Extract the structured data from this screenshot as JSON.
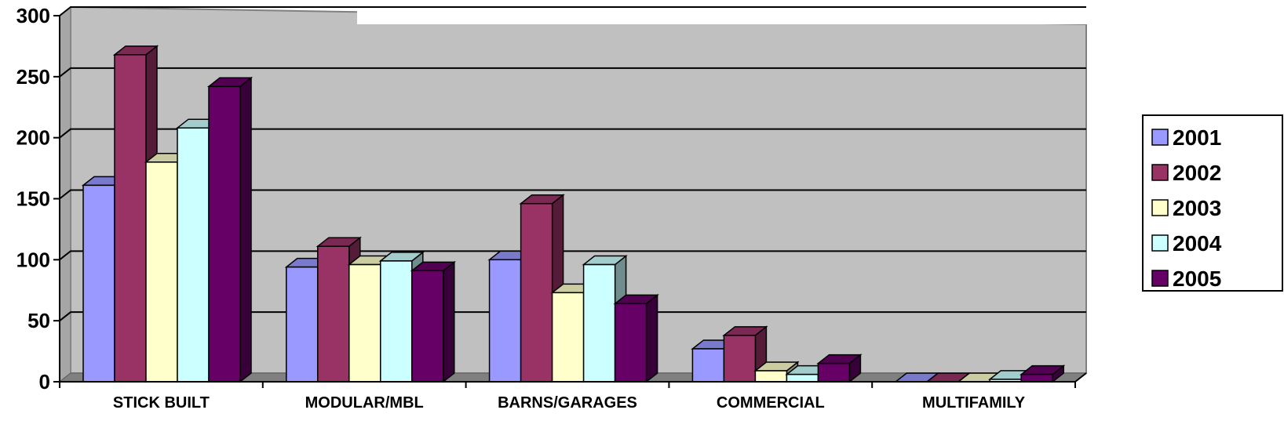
{
  "chart_data": {
    "type": "bar",
    "style": "3d-clustered-column",
    "categories": [
      "STICK BUILT",
      "MODULAR/MBL",
      "BARNS/GARAGES",
      "COMMERCIAL",
      "MULTIFAMILY"
    ],
    "series": [
      {
        "name": "2001",
        "color": "#9999FF",
        "values": [
          161,
          94,
          100,
          27,
          0
        ]
      },
      {
        "name": "2002",
        "color": "#993366",
        "values": [
          268,
          111,
          146,
          38,
          0
        ]
      },
      {
        "name": "2003",
        "color": "#FFFFCC",
        "values": [
          180,
          96,
          73,
          9,
          0
        ]
      },
      {
        "name": "2004",
        "color": "#CCFFFF",
        "values": [
          208,
          99,
          96,
          6,
          2
        ]
      },
      {
        "name": "2005",
        "color": "#660066",
        "values": [
          242,
          91,
          64,
          15,
          6
        ]
      }
    ],
    "title": "",
    "xlabel": "",
    "ylabel": "",
    "ylim": [
      0,
      300
    ],
    "yticks": [
      "0",
      "50",
      "100",
      "150",
      "200",
      "250",
      "300"
    ],
    "grid": true,
    "legend_position": "right",
    "plot_background": "#C0C0C0"
  }
}
